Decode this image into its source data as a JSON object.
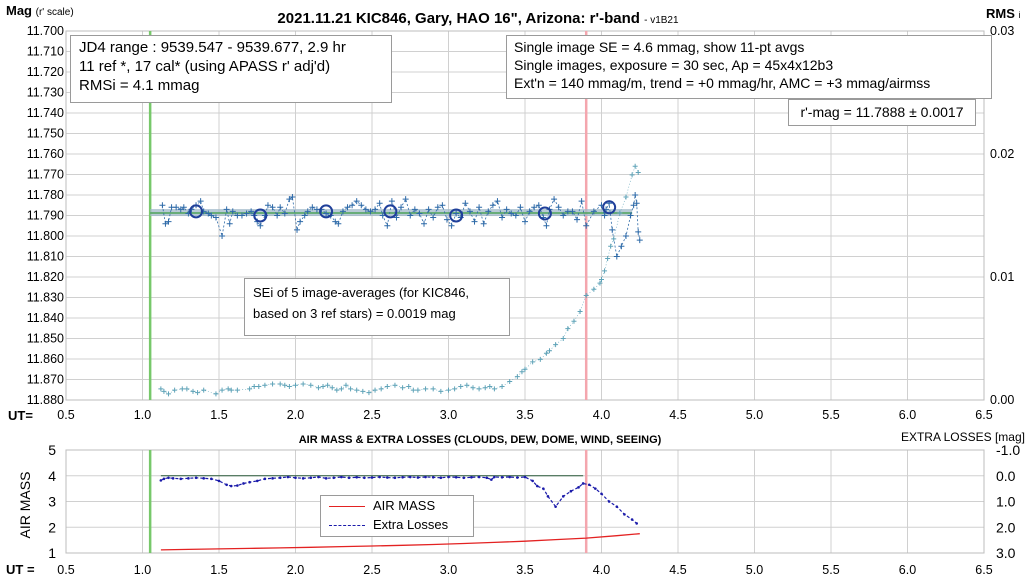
{
  "header": {
    "title": "2021.11.21 KIC846, Gary, HAO 16\", Arizona: r'-band",
    "version": "- v1B21"
  },
  "axes": {
    "top_y_label_main": "Mag",
    "top_y_label_sub": "(r' scale)",
    "top_right_label_main": "RMS",
    "top_right_label_sub": "i",
    "ut_label_top": "UT=",
    "ut_label_bottom": "UT =",
    "bottom_title": "AIR MASS & EXTRA LOSSES (CLOUDS, DEW, DOME, WIND, SEEING)",
    "bottom_right_label": "EXTRA LOSSES [mag]",
    "bottom_left_label": "AIR MASS"
  },
  "annotations": {
    "box_jd": [
      "JD4 range : 9539.547 - 9539.677,  2.9  hr",
      "11 ref *, 17 cal* (using APASS r' adj'd)",
      "RMSi = 4.1 mmag"
    ],
    "box_stats": [
      "Single image SE = 4.6 mmag, show  11-pt avgs",
      "Single images, exposure = 30 sec, Ap = 45x4x12b3",
      "Ext'n = 140 mmag/m, trend = +0  mmag/hr, AMC = +3 mmag/airmss"
    ],
    "box_mag": "r'-mag = 11.7888 ± 0.0017",
    "box_sei": [
      "SEi of 5 image-averages (for KIC846,",
      "based on 3 ref stars) = 0.0019 mag"
    ]
  },
  "legend": {
    "airmass": "AIR MASS",
    "extra": "Extra Losses"
  },
  "colors": {
    "individual": "#2e6aa8",
    "averages": "#1f3f9a",
    "rms": "#5fa3b8",
    "green_line": "#77c86a",
    "fit_band": "#9fb8c8",
    "pink_line": "#f4a6ae",
    "airmass": "#e32222",
    "extra": "#1b1baa",
    "grid": "#d0d0d0"
  },
  "chart_data": [
    {
      "type": "scatter",
      "title": "2021.11.21 KIC846, Gary, HAO 16\", Arizona: r'-band",
      "xlabel": "UT=",
      "ylabel": "Mag (r' scale)",
      "y2label": "RMS i",
      "xlim": [
        0.5,
        6.5
      ],
      "ylim": [
        11.88,
        11.7
      ],
      "y2lim": [
        0.0,
        0.03
      ],
      "xticks": [
        "0.5",
        "1.0",
        "1.5",
        "2.0",
        "2.5",
        "3.0",
        "3.5",
        "4.0",
        "4.5",
        "5.0",
        "5.5",
        "6.0",
        "6.5"
      ],
      "yticks": [
        "11.700",
        "11.710",
        "11.720",
        "11.730",
        "11.740",
        "11.750",
        "11.760",
        "11.770",
        "11.780",
        "11.790",
        "11.800",
        "11.810",
        "11.820",
        "11.830",
        "11.840",
        "11.850",
        "11.860",
        "11.870",
        "11.880"
      ],
      "y2ticks": [
        "0.03",
        "0.02",
        "0.01",
        "0.00"
      ],
      "grid": true,
      "vertical_lines": [
        {
          "x": 1.05,
          "color": "green"
        },
        {
          "x": 3.9,
          "color": "pink"
        }
      ],
      "fit_line": {
        "x": [
          1.05,
          4.2
        ],
        "y": [
          11.7888,
          11.7888
        ]
      },
      "series": [
        {
          "x": [
            1.13,
            1.15,
            1.17,
            1.19,
            1.22,
            1.25,
            1.27,
            1.3,
            1.32,
            1.35,
            1.38,
            1.4,
            1.43,
            1.45,
            1.48,
            1.52,
            1.55,
            1.57,
            1.59,
            1.62,
            1.65,
            1.68,
            1.71,
            1.73,
            1.75,
            1.77,
            1.8,
            1.82,
            1.85,
            1.88,
            1.9,
            1.93,
            1.96,
            1.98,
            2.01,
            2.03,
            2.06,
            2.08,
            2.11,
            2.14,
            2.17,
            2.2,
            2.23,
            2.26,
            2.28,
            2.31,
            2.34,
            2.37,
            2.4,
            2.43,
            2.46,
            2.49,
            2.52,
            2.55,
            2.57,
            2.6,
            2.63,
            2.66,
            2.69,
            2.72,
            2.75,
            2.78,
            2.81,
            2.84,
            2.87,
            2.9,
            2.93,
            2.96,
            2.99,
            3.02,
            3.05,
            3.08,
            3.11,
            3.14,
            3.17,
            3.2,
            3.23,
            3.26,
            3.29,
            3.32,
            3.35,
            3.38,
            3.41,
            3.44,
            3.47,
            3.5,
            3.53,
            3.56,
            3.59,
            3.62,
            3.64,
            3.66,
            3.69,
            3.72,
            3.75,
            3.78,
            3.81,
            3.84,
            3.87,
            3.9,
            3.95,
            4.0,
            4.02,
            4.03,
            4.05,
            4.07,
            4.1,
            4.13,
            4.16,
            4.19,
            4.21,
            4.22,
            4.23,
            4.24,
            4.25
          ],
          "y": [
            11.785,
            11.794,
            11.793,
            11.786,
            11.786,
            11.787,
            11.786,
            11.789,
            11.787,
            11.785,
            11.783,
            11.788,
            11.789,
            11.79,
            11.791,
            11.8,
            11.787,
            11.794,
            11.788,
            11.79,
            11.79,
            11.789,
            11.788,
            11.79,
            11.793,
            11.795,
            11.79,
            11.785,
            11.786,
            11.79,
            11.786,
            11.789,
            11.782,
            11.781,
            11.797,
            11.793,
            11.79,
            11.788,
            11.786,
            11.787,
            11.787,
            11.789,
            11.79,
            11.793,
            11.794,
            11.788,
            11.786,
            11.785,
            11.783,
            11.785,
            11.787,
            11.788,
            11.787,
            11.784,
            11.79,
            11.795,
            11.783,
            11.791,
            11.786,
            11.782,
            11.79,
            11.787,
            11.789,
            11.794,
            11.787,
            11.791,
            11.786,
            11.785,
            11.792,
            11.795,
            11.789,
            11.791,
            11.784,
            11.788,
            11.793,
            11.786,
            11.794,
            11.788,
            11.785,
            11.783,
            11.791,
            11.787,
            11.789,
            11.79,
            11.786,
            11.793,
            11.788,
            11.786,
            11.785,
            11.791,
            11.795,
            11.787,
            11.782,
            11.786,
            11.79,
            11.788,
            11.788,
            11.792,
            11.783,
            11.795,
            11.788,
            11.785,
            11.79,
            11.787,
            11.784,
            11.797,
            11.81,
            11.805,
            11.8,
            11.79,
            11.785,
            11.78,
            11.784,
            11.798,
            11.802
          ]
        },
        {
          "x": [
            1.35,
            1.77,
            2.2,
            2.62,
            3.05,
            3.63,
            4.05
          ],
          "y": [
            11.788,
            11.79,
            11.788,
            11.788,
            11.79,
            11.789,
            11.786
          ]
        },
        {
          "x": [
            1.12,
            1.14,
            1.17,
            1.21,
            1.26,
            1.29,
            1.33,
            1.36,
            1.4,
            1.48,
            1.52,
            1.56,
            1.58,
            1.62,
            1.7,
            1.73,
            1.76,
            1.8,
            1.85,
            1.9,
            1.93,
            1.96,
            2.0,
            2.05,
            2.1,
            2.15,
            2.18,
            2.21,
            2.24,
            2.27,
            2.3,
            2.33,
            2.36,
            2.4,
            2.44,
            2.48,
            2.52,
            2.56,
            2.6,
            2.65,
            2.7,
            2.74,
            2.77,
            2.8,
            2.85,
            2.9,
            2.95,
            3.0,
            3.04,
            3.08,
            3.12,
            3.16,
            3.2,
            3.24,
            3.27,
            3.3,
            3.35,
            3.4,
            3.45,
            3.48,
            3.5,
            3.55,
            3.6,
            3.64,
            3.66,
            3.7,
            3.75,
            3.78,
            3.82,
            3.86,
            3.9,
            3.95,
            3.99,
            4.0,
            4.02,
            4.04,
            4.06,
            4.08,
            4.12,
            4.16,
            4.2,
            4.22,
            4.24
          ],
          "y": [
            0.0009,
            0.0007,
            0.0005,
            0.0008,
            0.0009,
            0.0009,
            0.0007,
            0.0006,
            0.0008,
            0.0005,
            0.0008,
            0.0009,
            0.0008,
            0.0008,
            0.0009,
            0.0011,
            0.0011,
            0.0012,
            0.0013,
            0.0013,
            0.0012,
            0.0011,
            0.0012,
            0.0013,
            0.0012,
            0.001,
            0.0011,
            0.0012,
            0.001,
            0.0008,
            0.0009,
            0.0012,
            0.0009,
            0.0008,
            0.0007,
            0.0006,
            0.0008,
            0.0009,
            0.0011,
            0.0012,
            0.001,
            0.0011,
            0.0008,
            0.0008,
            0.0009,
            0.0009,
            0.0007,
            0.0008,
            0.0009,
            0.0011,
            0.0012,
            0.001,
            0.0009,
            0.001,
            0.0011,
            0.0009,
            0.0011,
            0.0015,
            0.0019,
            0.0023,
            0.0025,
            0.0031,
            0.0033,
            0.0038,
            0.004,
            0.0045,
            0.005,
            0.0058,
            0.0064,
            0.0072,
            0.0085,
            0.009,
            0.0095,
            0.0098,
            0.0105,
            0.0115,
            0.0125,
            0.0131,
            0.0152,
            0.0165,
            0.0183,
            0.019,
            0.0185
          ]
        }
      ]
    },
    {
      "type": "line",
      "title": "AIR MASS & EXTRA LOSSES (CLOUDS, DEW, DOME, WIND, SEEING)",
      "xlabel": "UT =",
      "ylabel": "AIR MASS",
      "y2label": "EXTRA LOSSES [mag]",
      "xlim": [
        0.5,
        6.5
      ],
      "ylim": [
        1,
        5
      ],
      "y2lim": [
        3.0,
        -1.0
      ],
      "xticks": [
        "0.5",
        "1.0",
        "1.5",
        "2.0",
        "2.5",
        "3.0",
        "3.5",
        "4.0",
        "4.5",
        "5.0",
        "5.5",
        "6.0",
        "6.5"
      ],
      "yticks": [
        "1",
        "2",
        "3",
        "4",
        "5"
      ],
      "y2ticks": [
        "-1.0",
        "0.0",
        "1.0",
        "2.0",
        "3.0"
      ],
      "grid": true,
      "vertical_lines": [
        {
          "x": 1.05,
          "color": "green"
        },
        {
          "x": 3.9,
          "color": "pink"
        }
      ],
      "reference_line": {
        "x": [
          1.12,
          3.88
        ],
        "y2": 0.0
      },
      "series": [
        {
          "name": "AIR MASS",
          "x": [
            1.12,
            1.3,
            1.5,
            1.7,
            1.9,
            2.1,
            2.3,
            2.5,
            2.7,
            2.9,
            3.1,
            3.3,
            3.5,
            3.7,
            3.9,
            4.1,
            4.25
          ],
          "y": [
            1.12,
            1.14,
            1.16,
            1.18,
            1.2,
            1.22,
            1.25,
            1.27,
            1.3,
            1.33,
            1.37,
            1.41,
            1.46,
            1.52,
            1.58,
            1.67,
            1.75
          ]
        },
        {
          "name": "Extra Losses",
          "x": [
            1.12,
            1.14,
            1.17,
            1.2,
            1.25,
            1.3,
            1.35,
            1.4,
            1.45,
            1.5,
            1.55,
            1.58,
            1.62,
            1.66,
            1.7,
            1.75,
            1.8,
            1.85,
            1.9,
            1.95,
            2.0,
            2.05,
            2.1,
            2.15,
            2.2,
            2.25,
            2.3,
            2.35,
            2.4,
            2.45,
            2.5,
            2.55,
            2.6,
            2.65,
            2.7,
            2.75,
            2.8,
            2.85,
            2.9,
            2.95,
            3.0,
            3.05,
            3.1,
            3.15,
            3.2,
            3.25,
            3.28,
            3.3,
            3.35,
            3.4,
            3.45,
            3.5,
            3.55,
            3.58,
            3.62,
            3.65,
            3.7,
            3.75,
            3.8,
            3.85,
            3.88,
            3.92,
            3.96,
            4.0,
            4.05,
            4.1,
            4.15,
            4.2,
            4.23
          ],
          "y2": [
            0.18,
            0.12,
            0.08,
            0.1,
            0.12,
            0.1,
            0.08,
            0.1,
            0.12,
            0.2,
            0.35,
            0.4,
            0.38,
            0.3,
            0.25,
            0.2,
            0.12,
            0.1,
            0.08,
            0.05,
            0.08,
            0.1,
            0.08,
            0.05,
            0.1,
            0.08,
            0.05,
            0.08,
            0.06,
            0.08,
            0.07,
            0.05,
            0.07,
            0.08,
            0.06,
            0.05,
            0.07,
            0.05,
            0.06,
            0.08,
            0.05,
            0.06,
            0.08,
            0.06,
            0.05,
            0.08,
            0.15,
            0.05,
            0.06,
            0.05,
            0.07,
            0.05,
            0.2,
            0.4,
            0.5,
            0.8,
            1.2,
            0.8,
            0.6,
            0.45,
            0.3,
            0.35,
            0.5,
            0.7,
            1.0,
            1.2,
            1.5,
            1.7,
            1.85
          ]
        }
      ]
    }
  ]
}
